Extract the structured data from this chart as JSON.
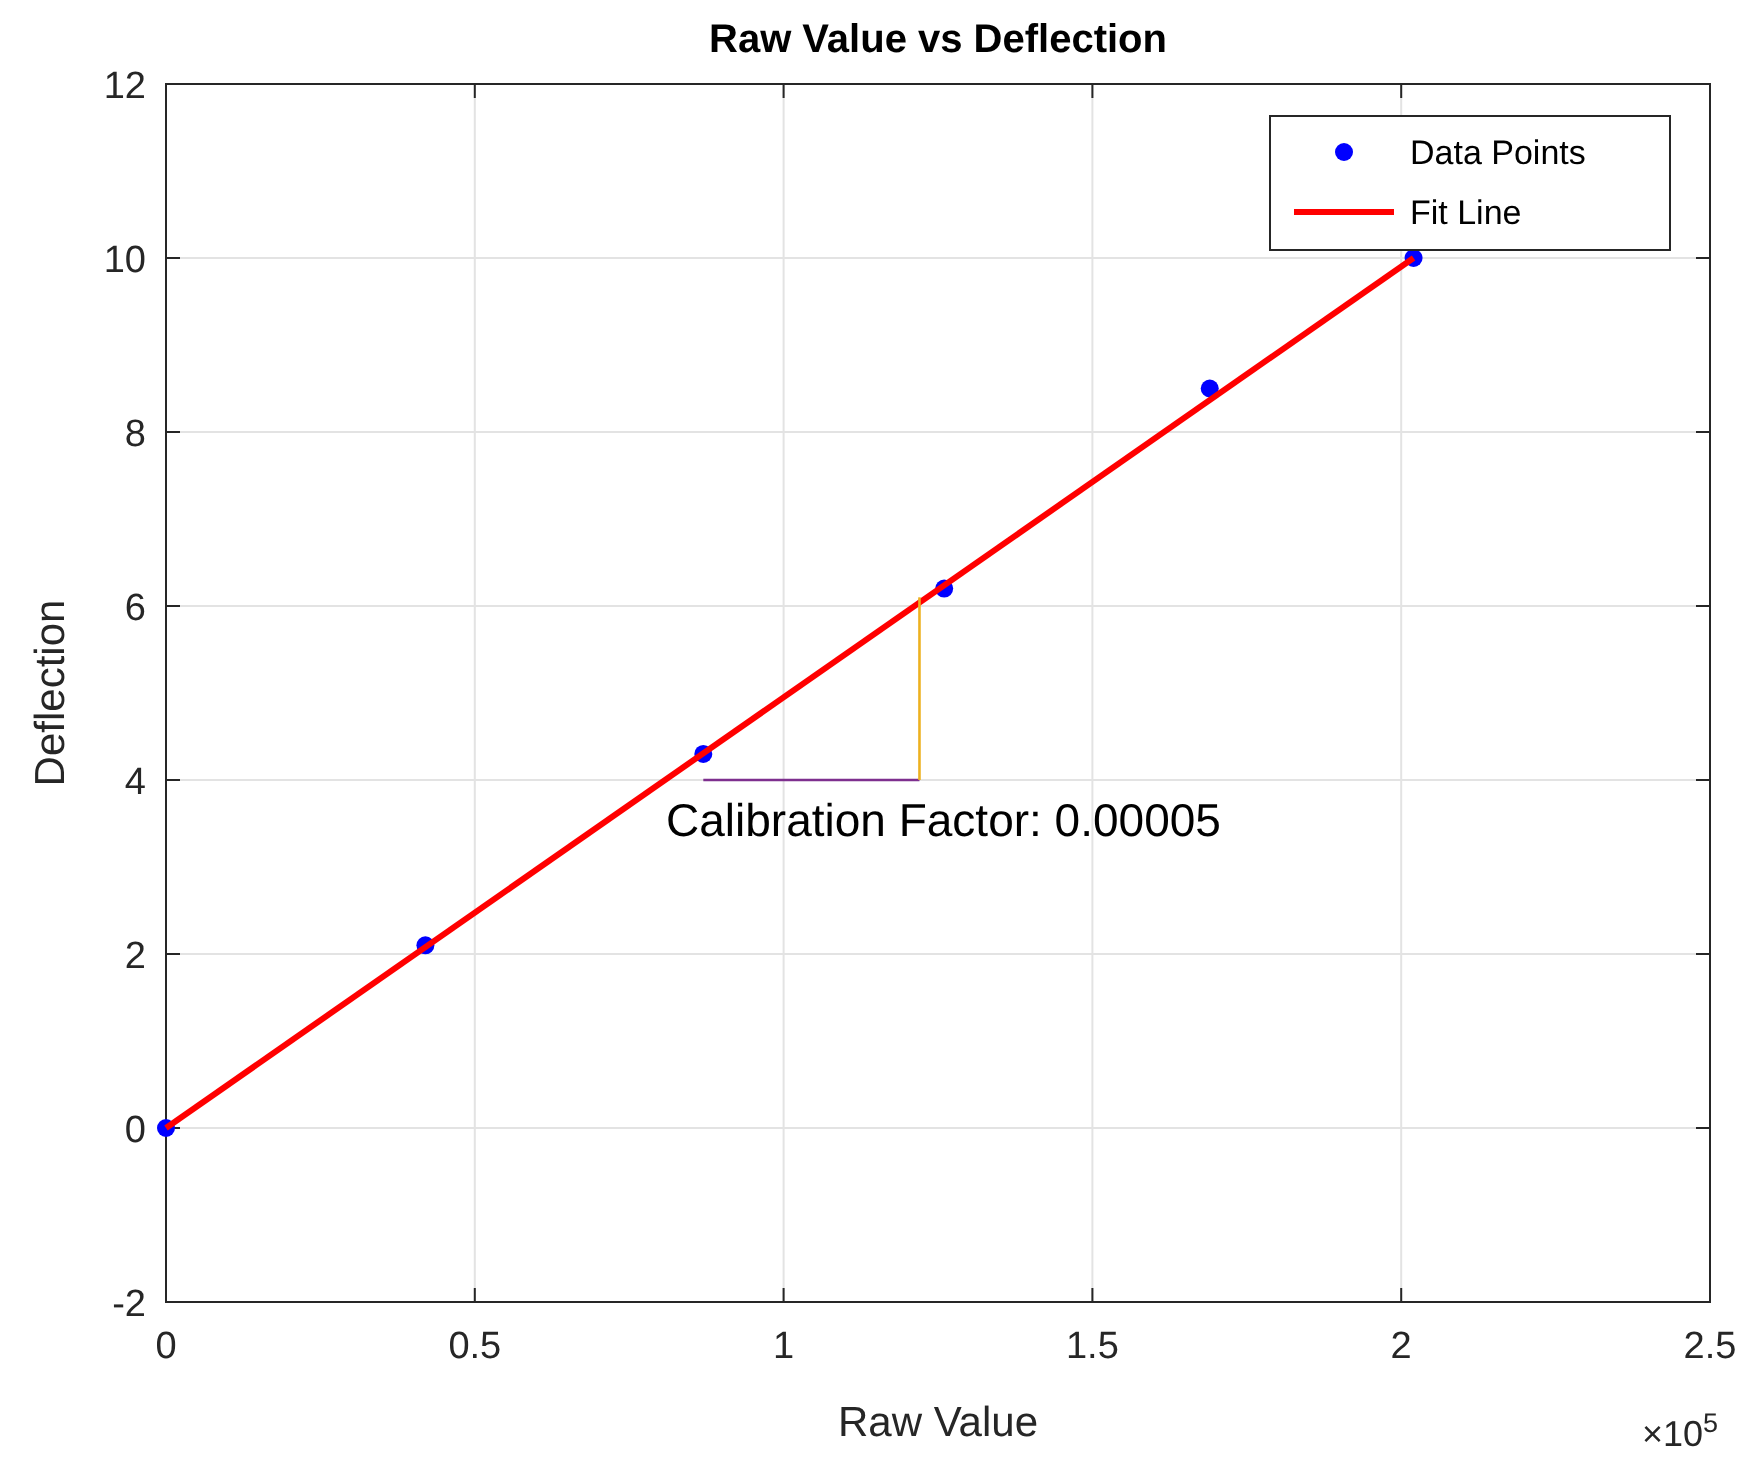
{
  "chart_data": {
    "type": "scatter",
    "title": "Raw Value vs Deflection",
    "xlabel": "Raw Value",
    "ylabel": "Deflection",
    "xlim": [
      0,
      2.5
    ],
    "xticks": [
      0,
      0.5,
      1,
      1.5,
      2,
      2.5
    ],
    "ylim": [
      -2,
      12
    ],
    "yticks": [
      -2,
      0,
      2,
      4,
      6,
      8,
      10,
      12
    ],
    "grid": true,
    "legend": "top right",
    "series": [
      {
        "name": "Data Points",
        "color": "#0000ff",
        "marker": "circle",
        "x": [
          0,
          0.42,
          0.87,
          1.26,
          1.69,
          2.02
        ],
        "values": [
          0,
          2.1,
          4.3,
          6.2,
          8.5,
          10
        ]
      },
      {
        "name": "Fit Line",
        "type": "line",
        "color": "#ff0000",
        "x": [
          0,
          2.02
        ],
        "values": [
          0,
          10
        ]
      },
      {
        "type": "line",
        "color": "#7e2f8e",
        "x": [
          0.87,
          1.22
        ],
        "values": [
          4,
          4
        ]
      },
      {
        "type": "line",
        "color": "#edb120",
        "x": [
          1.22,
          1.22
        ],
        "values": [
          4,
          6.1
        ]
      }
    ],
    "annotations": [
      "×10$^{5}$",
      "Calibration Factor: 0.00005"
    ]
  }
}
